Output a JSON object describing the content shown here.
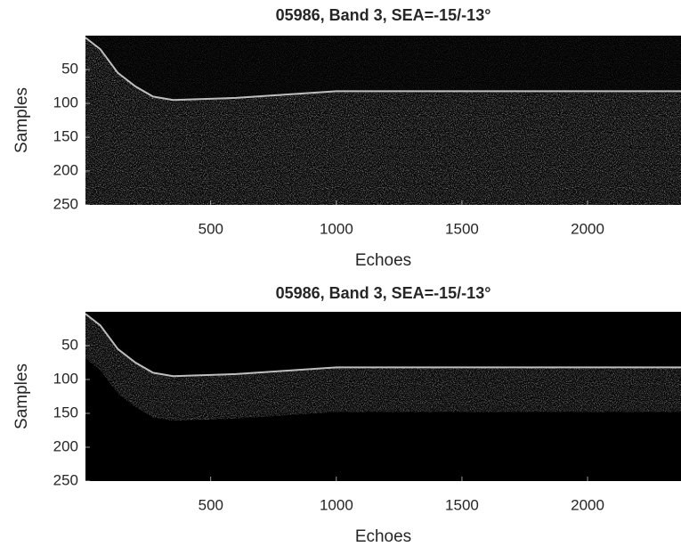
{
  "chart_data": [
    {
      "type": "radargram",
      "title": "05986, Band 3, SEA=-15/-13°",
      "x_label": "Echoes",
      "y_label": "Samples",
      "x": [
        1,
        60,
        130,
        200,
        270,
        350,
        600,
        800,
        1000,
        1500,
        2000,
        2372
      ],
      "values": [
        3,
        20,
        55,
        75,
        90,
        95,
        92,
        87,
        82,
        82,
        82,
        82
      ],
      "xlim": [
        1,
        2372
      ],
      "ylim": [
        0,
        250
      ],
      "xticks": [
        500,
        1000,
        1500,
        2000
      ],
      "yticks": [
        50,
        100,
        150,
        200,
        250
      ]
    },
    {
      "type": "radargram",
      "title": "05986, Band 3, SEA=-15/-13°",
      "x_label": "Echoes",
      "y_label": "Samples",
      "x": [
        1,
        60,
        130,
        200,
        270,
        350,
        600,
        800,
        1000,
        1500,
        2000,
        2372
      ],
      "values": [
        3,
        20,
        55,
        75,
        90,
        95,
        92,
        87,
        82,
        82,
        82,
        82
      ],
      "xlim": [
        1,
        2372
      ],
      "ylim": [
        0,
        250
      ],
      "xticks": [
        500,
        1000,
        1500,
        2000
      ],
      "yticks": [
        50,
        100,
        150,
        200,
        250
      ]
    }
  ]
}
